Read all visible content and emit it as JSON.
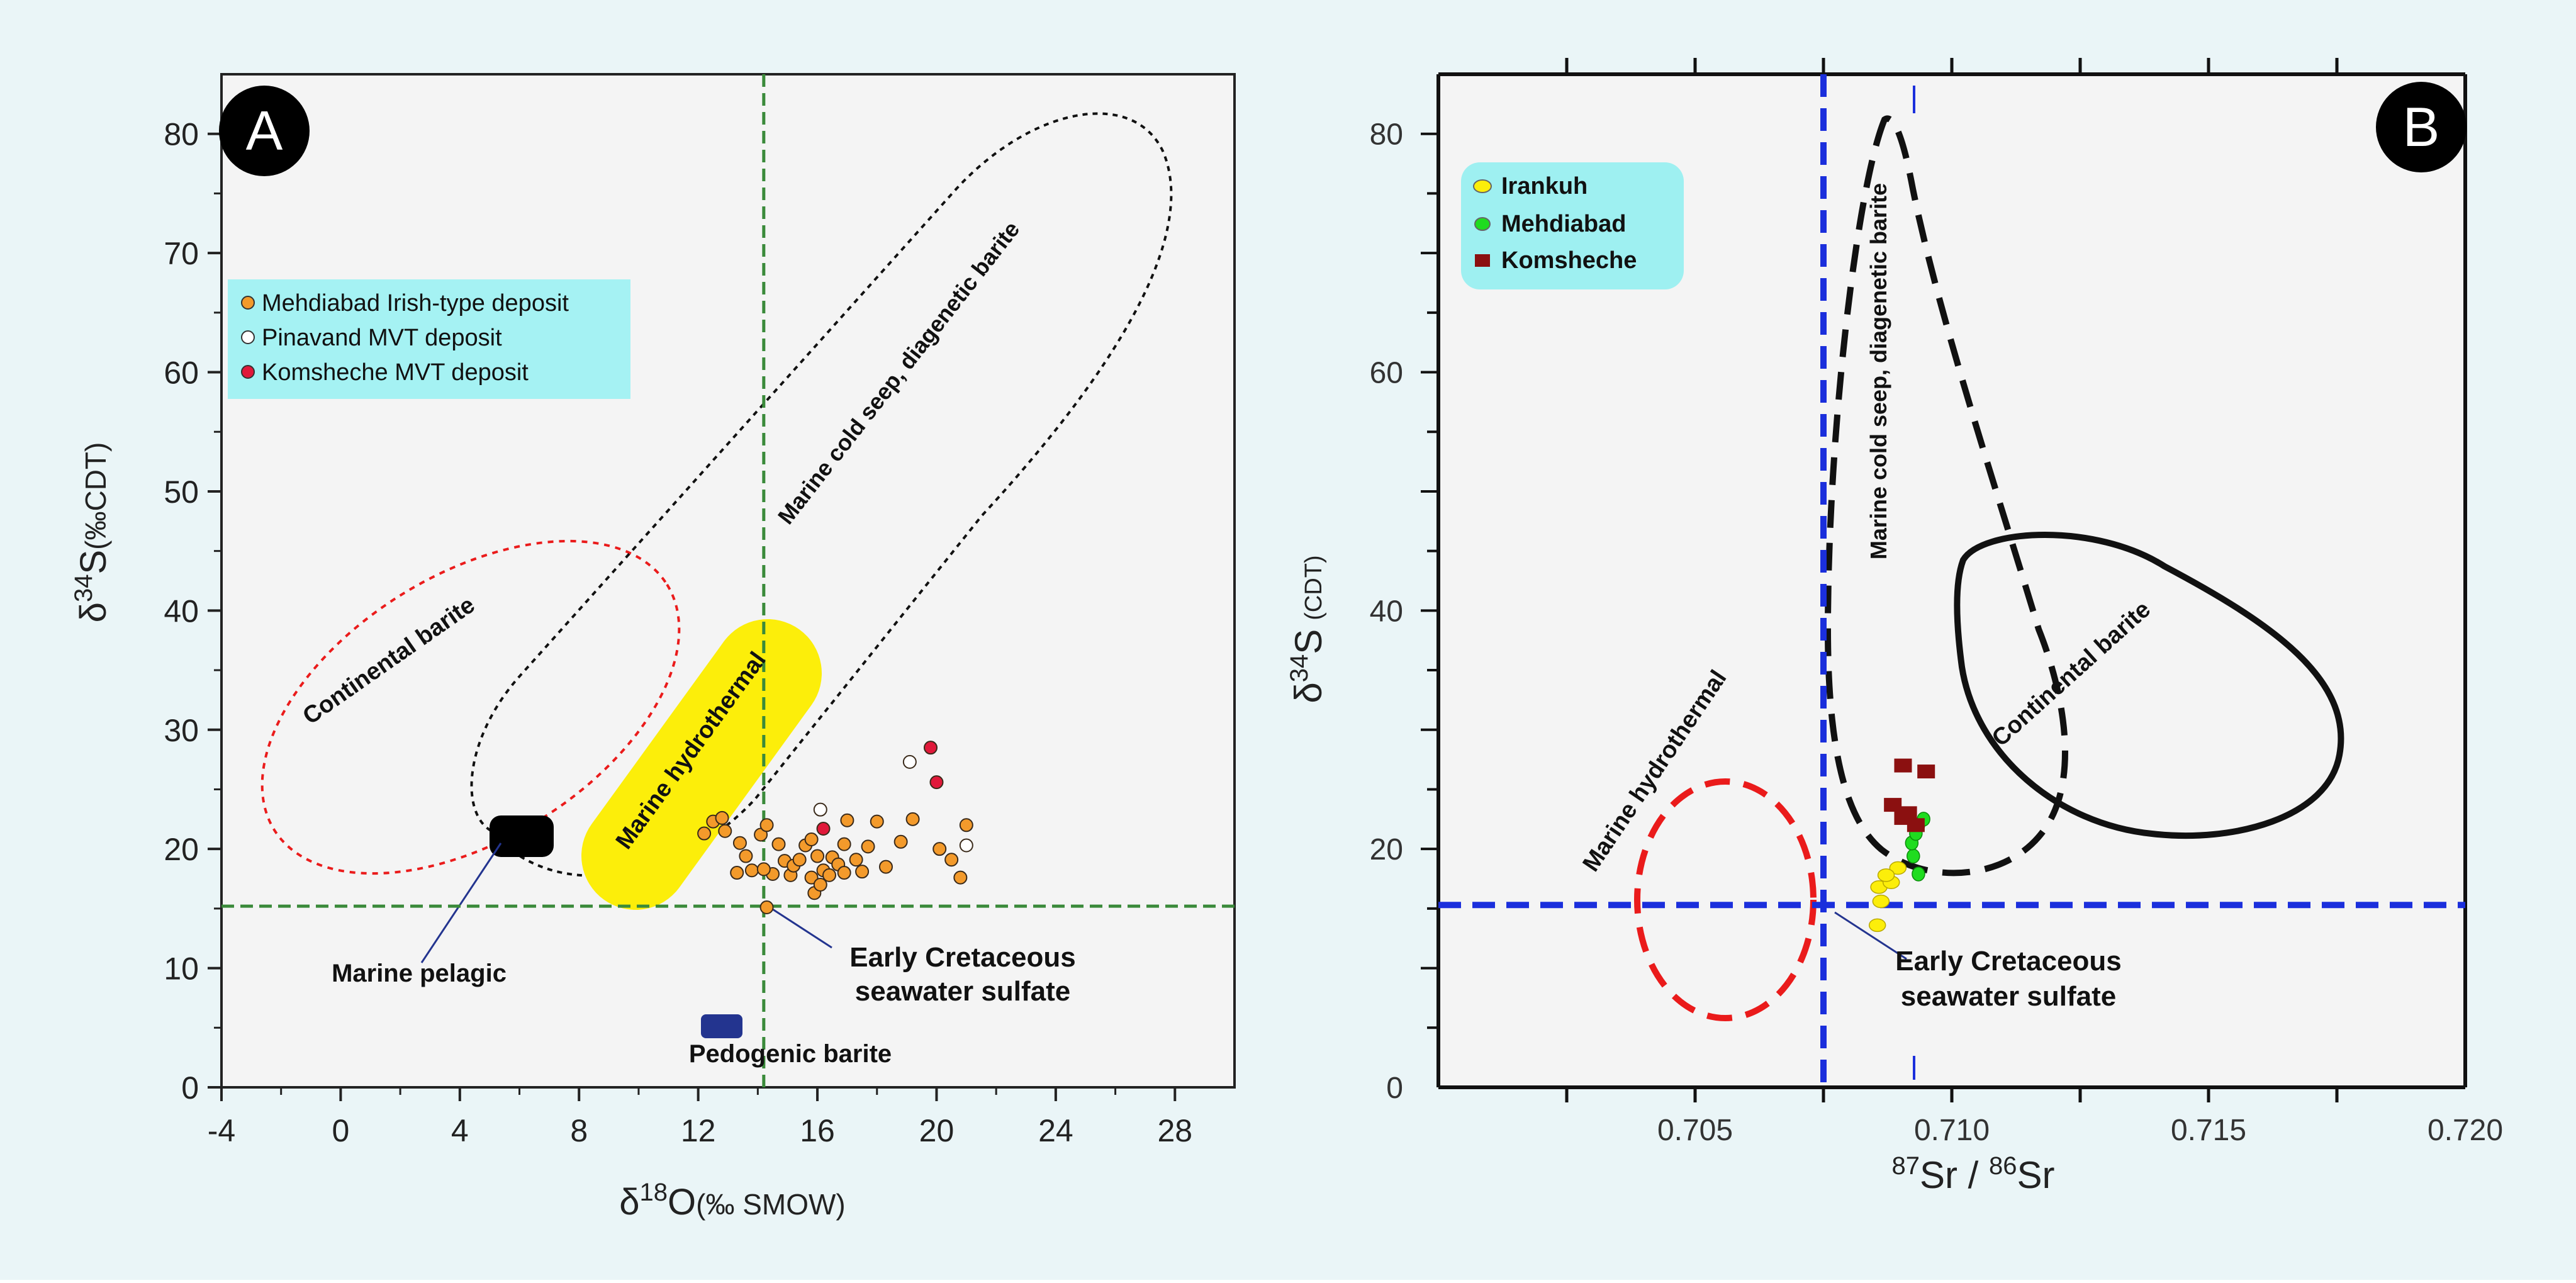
{
  "colors": {
    "figure_background": "#eaf5f7",
    "plot_background": "#f4f4f4",
    "legend_a_background": "#a5f2f3",
    "legend_b_background": "#9ef0f1",
    "orange": "#f39a2b",
    "crimson": "#e0193a",
    "yellow": "#fcee0a",
    "green": "#1fdc1f",
    "maroon": "#8b1010",
    "blue": "#1b2fdc",
    "navy": "#23348f",
    "red_dashed": "#ea1b1b",
    "green_dashed": "#3a8a3a"
  },
  "chart_data": [
    {
      "id": "A",
      "type": "scatter",
      "panel_label": "A",
      "xlabel": {
        "prefix": "δ",
        "sup": "18",
        "main": "O",
        "unit": "(‰ SMOW)"
      },
      "ylabel": {
        "prefix": "δ",
        "sup": "34",
        "main": "S",
        "unit": "(‰CDT)"
      },
      "xlim": [
        -4,
        30
      ],
      "ylim": [
        0,
        85
      ],
      "xticks": [
        -4,
        0,
        4,
        8,
        12,
        16,
        20,
        24,
        28
      ],
      "yticks": [
        0,
        10,
        20,
        30,
        40,
        50,
        60,
        70,
        80
      ],
      "xtick_labels": [
        "-4",
        "0",
        "4",
        "8",
        "12",
        "16",
        "20",
        "24",
        "28"
      ],
      "ytick_labels": [
        "0",
        "10",
        "20",
        "30",
        "40",
        "50",
        "60",
        "70",
        "80"
      ],
      "legend": [
        {
          "label": "Mehdiabad Irish-type deposit",
          "marker": "orange-circle"
        },
        {
          "label": "Pinavand MVT deposit",
          "marker": "white-circle"
        },
        {
          "label": "Komsheche MVT deposit",
          "marker": "crimson-circle"
        }
      ],
      "series": [
        {
          "name": "Mehdiabad Irish-type deposit",
          "points": [
            [
              12.2,
              21.3
            ],
            [
              12.5,
              22.3
            ],
            [
              12.8,
              22.6
            ],
            [
              12.9,
              21.5
            ],
            [
              13.4,
              20.5
            ],
            [
              13.6,
              19.4
            ],
            [
              13.8,
              18.2
            ],
            [
              14.1,
              21.2
            ],
            [
              14.3,
              22.0
            ],
            [
              14.5,
              17.9
            ],
            [
              14.7,
              20.4
            ],
            [
              14.9,
              19.0
            ],
            [
              15.1,
              17.8
            ],
            [
              15.2,
              18.6
            ],
            [
              15.4,
              19.1
            ],
            [
              15.6,
              20.3
            ],
            [
              15.8,
              17.6
            ],
            [
              16.0,
              19.4
            ],
            [
              16.2,
              18.2
            ],
            [
              16.4,
              17.8
            ],
            [
              16.5,
              19.3
            ],
            [
              16.7,
              18.7
            ],
            [
              16.9,
              18.0
            ],
            [
              13.3,
              18.0
            ],
            [
              14.2,
              18.3
            ],
            [
              15.9,
              16.3
            ],
            [
              16.1,
              17.0
            ],
            [
              17.3,
              19.1
            ],
            [
              17.5,
              18.1
            ],
            [
              17.7,
              20.2
            ],
            [
              18.3,
              18.5
            ],
            [
              18.8,
              20.6
            ],
            [
              19.2,
              22.5
            ],
            [
              20.1,
              20.0
            ],
            [
              20.5,
              19.1
            ],
            [
              21.0,
              22.0
            ],
            [
              20.8,
              17.6
            ],
            [
              14.3,
              15.1
            ],
            [
              15.8,
              20.8
            ],
            [
              16.9,
              20.4
            ],
            [
              17.0,
              22.4
            ],
            [
              18.0,
              22.3
            ]
          ]
        },
        {
          "name": "Pinavand MVT deposit",
          "points": [
            [
              16.1,
              23.3
            ],
            [
              19.1,
              27.3
            ],
            [
              21.0,
              20.3
            ]
          ]
        },
        {
          "name": "Komsheche MVT deposit",
          "points": [
            [
              19.8,
              28.5
            ],
            [
              20.0,
              25.6
            ],
            [
              16.2,
              21.7
            ]
          ]
        }
      ],
      "reference_lines": {
        "vertical_x": 14.2,
        "horizontal_y": 15.2
      },
      "fields": [
        {
          "name": "Continental barite",
          "style": "red-dotted-ellipse"
        },
        {
          "name": "Marine cold seep, diagenetic barite",
          "style": "black-dotted-loop"
        },
        {
          "name": "Marine hydrothermal",
          "style": "yellow-band"
        },
        {
          "name": "Marine pelagic",
          "style": "black-box",
          "center": [
            6,
            21
          ]
        },
        {
          "name": "Pedogenic barite",
          "style": "navy-box",
          "center": [
            12.9,
            5
          ]
        }
      ],
      "annotations": {
        "continental": "Continental barite",
        "cold_seep": "Marine cold seep, diagenetic barite",
        "hydrothermal": "Marine hydrothermal",
        "pelagic": "Marine pelagic",
        "pedogenic": "Pedogenic barite",
        "seawater_line1": "Early Cretaceous",
        "seawater_line2": "seawater sulfate"
      }
    },
    {
      "id": "B",
      "type": "scatter",
      "panel_label": "B",
      "xlabel": {
        "sup1": "87",
        "mid": "Sr / ",
        "sup2": "86",
        "end": "Sr"
      },
      "ylabel": {
        "prefix": "δ",
        "sup": "34",
        "main": "S",
        "unit": "(CDT)"
      },
      "xlim": [
        0.7,
        0.72
      ],
      "ylim": [
        0,
        85
      ],
      "xticks": [
        0.705,
        0.71,
        0.715,
        0.72
      ],
      "yticks": [
        0,
        20,
        40,
        60,
        80
      ],
      "xtick_labels": [
        "0.705",
        "0.710",
        "0.715",
        "0.720"
      ],
      "ytick_labels": [
        "0",
        "20",
        "40",
        "60",
        "80"
      ],
      "legend": [
        {
          "label": "Irankuh",
          "marker": "yellow-circle"
        },
        {
          "label": "Mehdiabad",
          "marker": "green-circle"
        },
        {
          "label": "Komsheche",
          "marker": "maroon-square"
        }
      ],
      "series": [
        {
          "name": "Irankuh",
          "points": [
            [
              0.70855,
              13.6
            ],
            [
              0.70862,
              15.6
            ],
            [
              0.70858,
              16.8
            ],
            [
              0.70882,
              17.2
            ],
            [
              0.70895,
              18.4
            ],
            [
              0.70872,
              17.8
            ]
          ]
        },
        {
          "name": "Mehdiabad",
          "points": [
            [
              0.70935,
              17.9
            ],
            [
              0.70925,
              19.4
            ],
            [
              0.70922,
              20.5
            ],
            [
              0.70935,
              22.0
            ],
            [
              0.70945,
              22.5
            ],
            [
              0.7093,
              21.3
            ]
          ]
        },
        {
          "name": "Komsheche",
          "points": [
            [
              0.70905,
              27.0
            ],
            [
              0.7095,
              26.5
            ],
            [
              0.70885,
              23.7
            ],
            [
              0.70905,
              22.6
            ],
            [
              0.70915,
              23.0
            ],
            [
              0.7093,
              22.0
            ]
          ]
        }
      ],
      "reference_lines": {
        "vertical_x": 0.7075,
        "horizontal_y": 15.3
      },
      "fields": [
        {
          "name": "Marine cold seep, diagenetic barite",
          "style": "black-dashed-loop"
        },
        {
          "name": "Continental barite",
          "style": "black-solid-loop"
        },
        {
          "name": "Marine hydrothermal",
          "style": "red-dashed-ellipse"
        }
      ],
      "annotations": {
        "cold_seep": "Marine cold seep, diagenetic barite",
        "continental": "Continental barite",
        "hydrothermal": "Marine hydrothermal",
        "seawater_line1": "Early Cretaceous",
        "seawater_line2": "seawater sulfate"
      }
    }
  ]
}
